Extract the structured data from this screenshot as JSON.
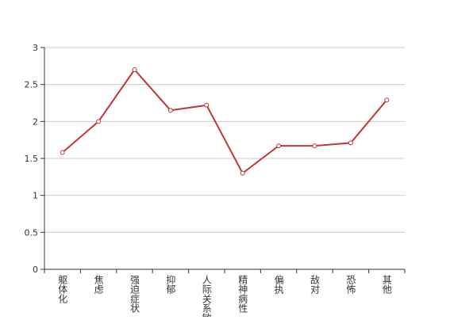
{
  "chart_data": {
    "type": "line",
    "categories": [
      "躯体化",
      "焦虑",
      "强迫症状",
      "抑郁",
      "人际关系敏感",
      "精神病性",
      "偏执",
      "敌对",
      "恐怖",
      "其他"
    ],
    "values": [
      1.58,
      2.0,
      2.7,
      2.15,
      2.22,
      1.3,
      1.67,
      1.67,
      1.71,
      2.29
    ],
    "color": "#c23531",
    "ylim": [
      0,
      3
    ],
    "yticks": [
      0,
      0.5,
      1,
      1.5,
      2,
      2.5,
      3
    ],
    "grid": true
  }
}
